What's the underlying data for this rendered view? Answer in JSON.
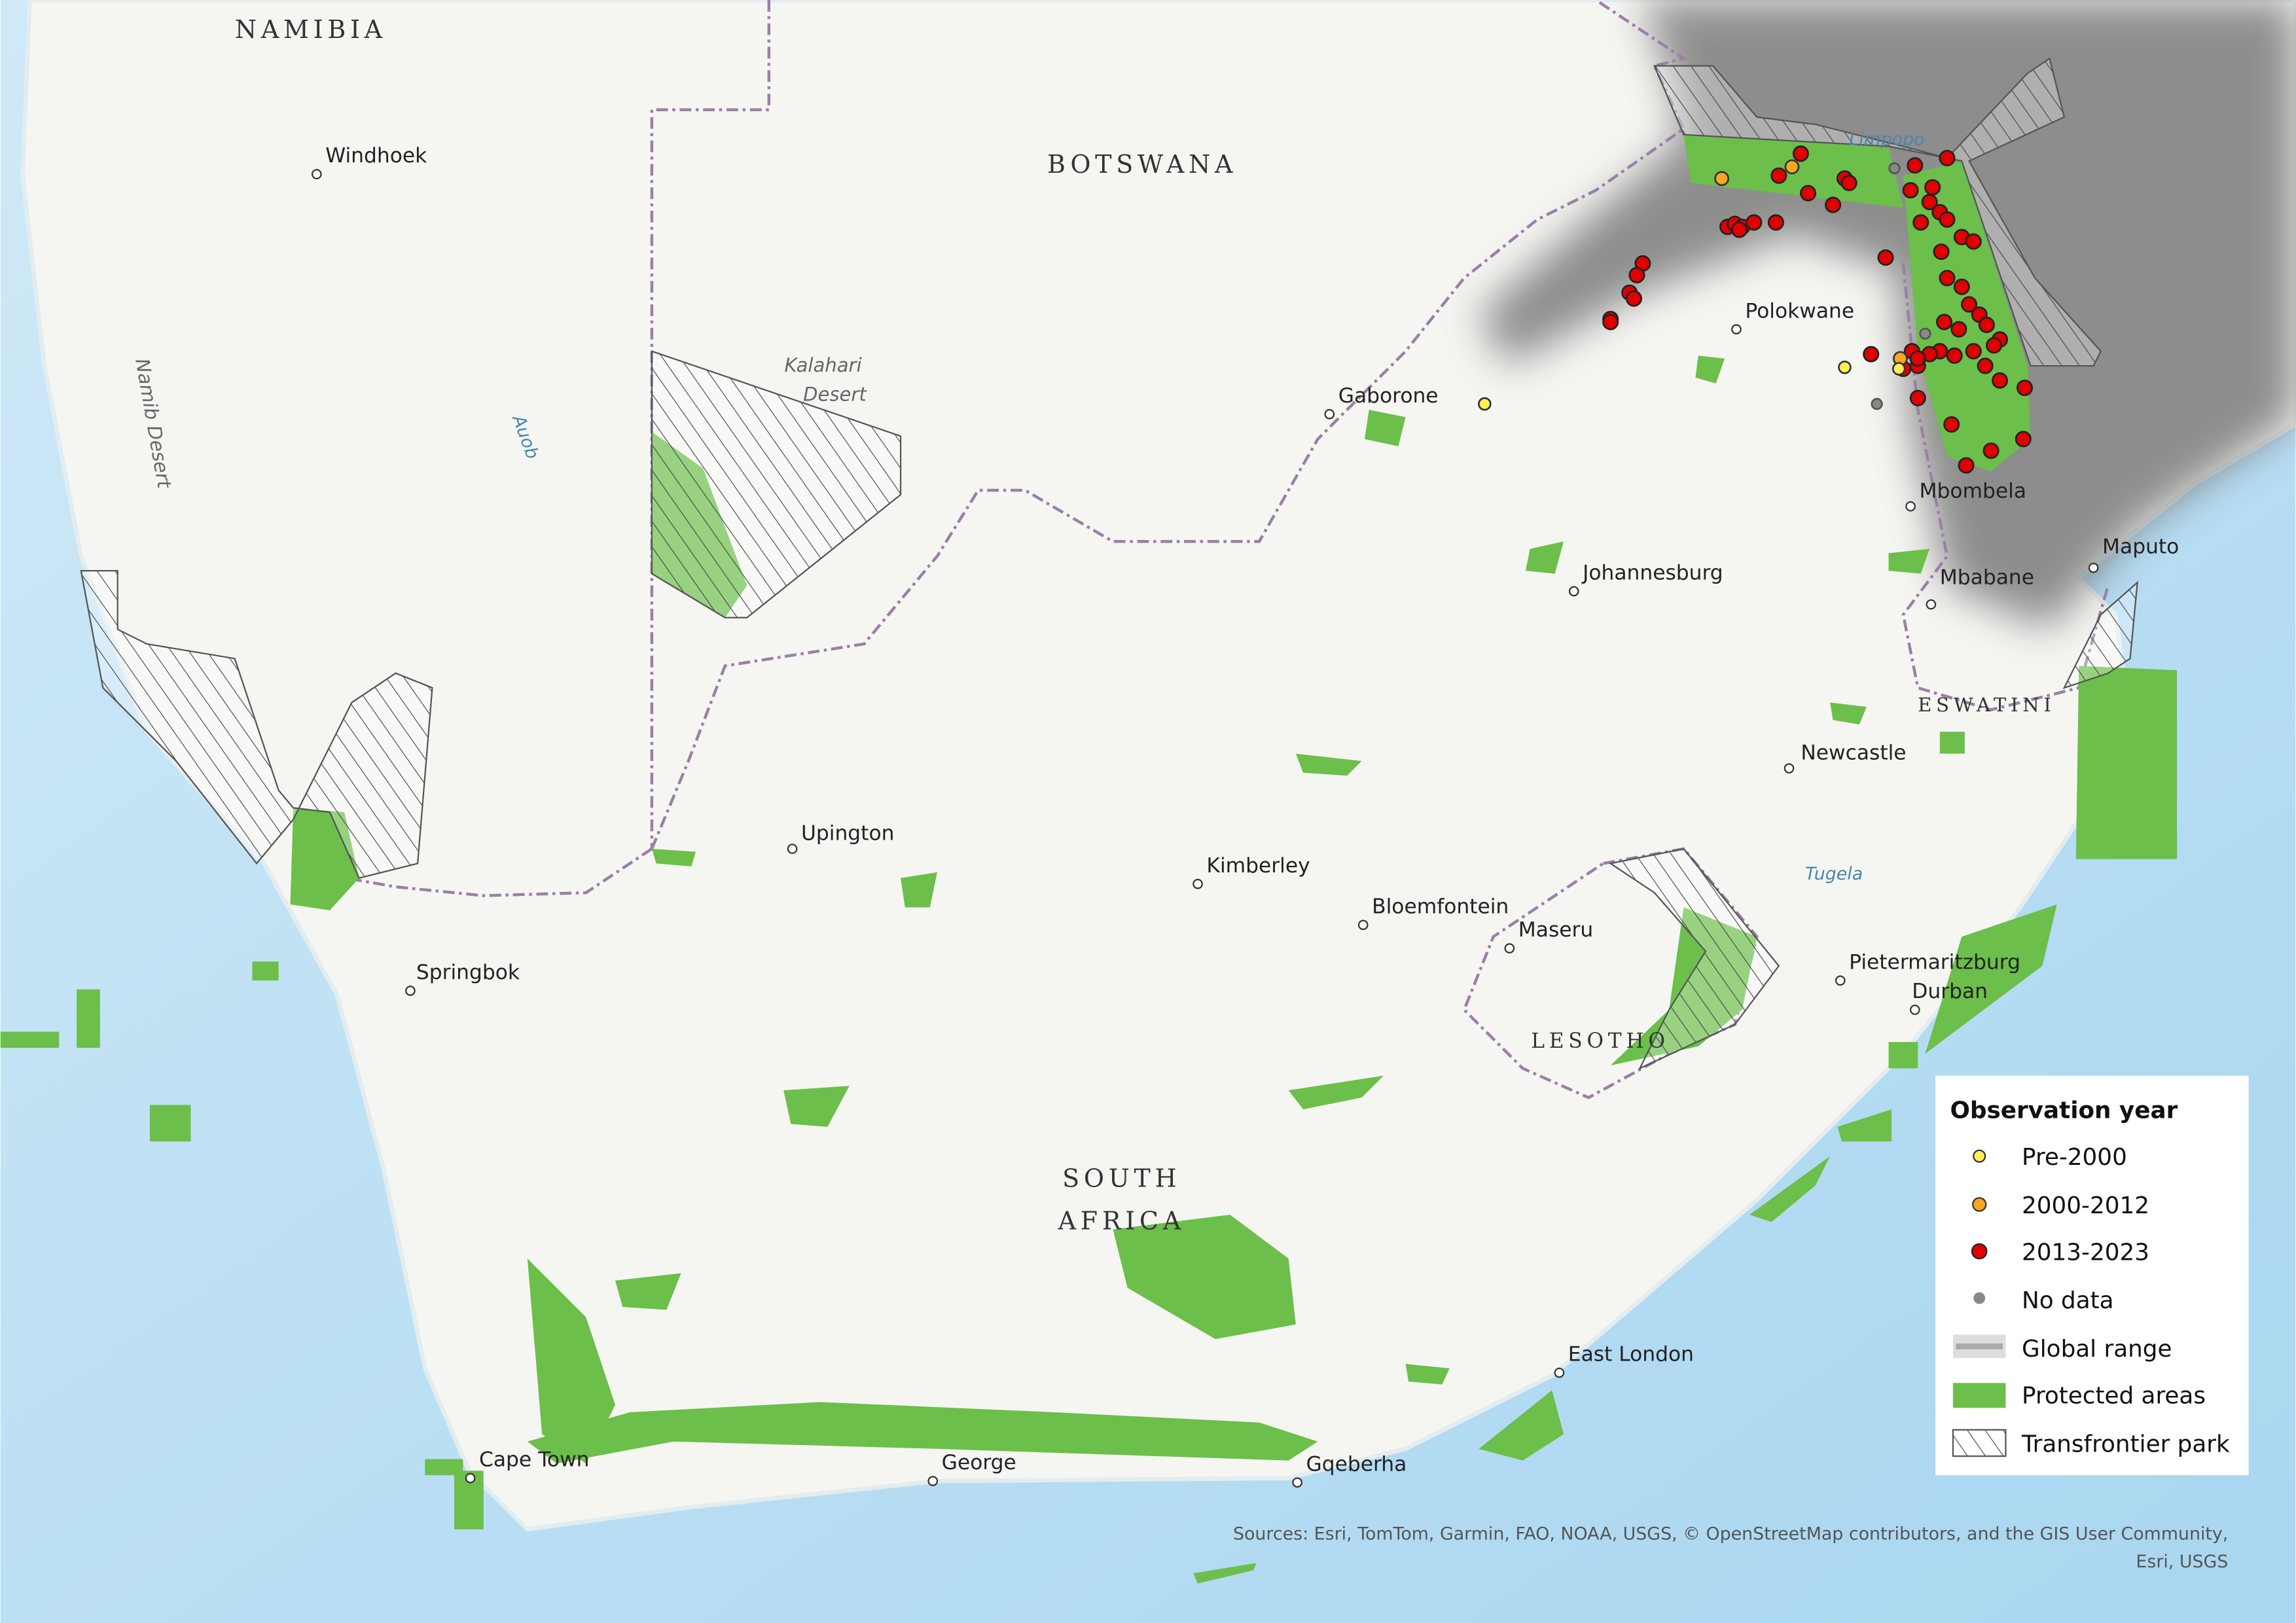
{
  "map": {
    "countries": [
      "NAMIBIA",
      "BOTSWANA",
      "SOUTH",
      "AFRICA",
      "LESOTHO",
      "ESWATINI"
    ],
    "cities": [
      "Windhoek",
      "Gaborone",
      "Polokwane",
      "Johannesburg",
      "Mbombela",
      "Maputo",
      "Mbabane",
      "Newcastle",
      "Upington",
      "Kimberley",
      "Bloemfontein",
      "Maseru",
      "Springbok",
      "Pietermaritzburg",
      "Durban",
      "East London",
      "Cape Town",
      "George",
      "Gqeberha"
    ],
    "features": [
      "Kalahari",
      "Desert",
      "Namib Desert"
    ],
    "rivers": [
      "Auob",
      "Limpopo",
      "Tugela"
    ]
  },
  "legend": {
    "title": "Observation year",
    "items": [
      "Pre-2000",
      "2000-2012",
      "2013-2023",
      "No data",
      "Global range",
      "Protected areas",
      "Transfrontier park"
    ]
  },
  "sources": [
    "Sources: Esri, TomTom, Garmin, FAO, NOAA, USGS, © OpenStreetMap contributors, and the GIS User Community,",
    "Esri, USGS"
  ]
}
